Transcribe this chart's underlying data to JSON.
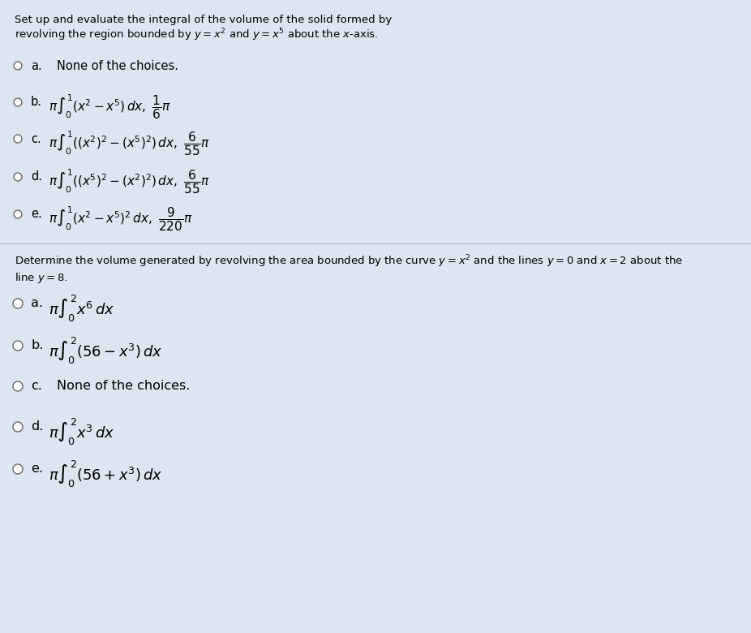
{
  "bg_color": "#dce6f0",
  "box1_color": "#dce6f0",
  "box2_color": "#dce6f0",
  "text_color": "#000000",
  "q1_title": "Set up and evaluate the integral of the volume of the solid formed by\nrevolving the region bounded by $y = x^2$ and $y = x^5$ about the $x$-axis.",
  "q1_options": [
    [
      "a.",
      "None of the choices."
    ],
    [
      "b.",
      "$\\pi\\int_0^{1}(x^2 - x^5)dx,\\ \\dfrac{1}{6}\\pi$"
    ],
    [
      "c.",
      "$\\pi\\int_0^{1}((x^2)^2 - (x^5)^2)dx,\\ \\dfrac{6}{55}\\pi$"
    ],
    [
      "d.",
      "$\\pi\\int_0^{1}((x^5)^2 - (x^2)^2)dx,\\ \\dfrac{6}{55}\\pi$"
    ],
    [
      "e.",
      "$\\pi\\int_0^{1}(x^2 - x^5)^2dx,\\ \\dfrac{9}{220}\\pi$"
    ]
  ],
  "q2_title": "Determine the volume generated by revolving the area bounded by the curve $y = x^2$ and the lines $y = 0$ and $x = 2$ about the\nline $y = 8$.",
  "q2_options": [
    [
      "a.",
      "$\\pi\\int_0^{2} x^6\\,dx$"
    ],
    [
      "b.",
      "$\\pi\\int_0^{2}(56 - x^3)\\,dx$"
    ],
    [
      "c.",
      "None of the choices."
    ],
    [
      "d.",
      "$\\pi\\int_0^{2} x^3\\,dx$"
    ],
    [
      "e.",
      "$\\pi\\int_0^{2}(56 + x^3)\\,dx$"
    ]
  ]
}
